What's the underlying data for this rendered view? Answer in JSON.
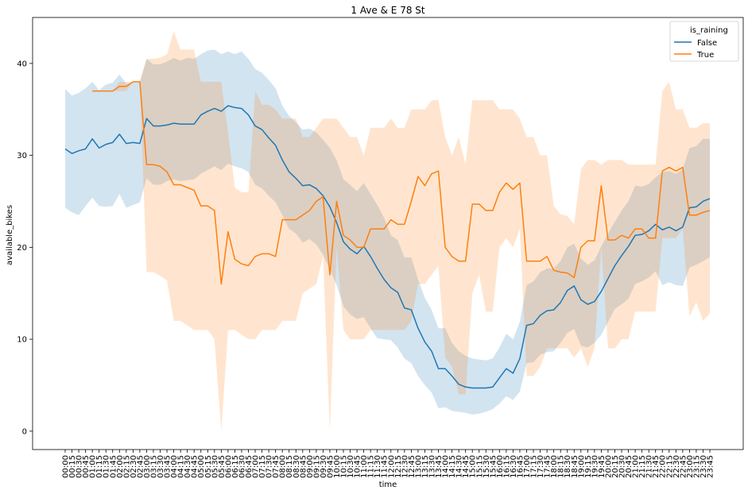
{
  "chart_data": {
    "type": "line",
    "title": "1 Ave & E 78 St",
    "xlabel": "time",
    "ylabel": "available_bikes",
    "ylim": [
      -2,
      45
    ],
    "yticks": [
      0,
      10,
      20,
      30,
      40
    ],
    "grid": false,
    "legend": {
      "title": "is_raining",
      "placement": "top-right",
      "entries": [
        "False",
        "True"
      ]
    },
    "x": [
      "00:00",
      "00:15",
      "00:30",
      "00:45",
      "01:00",
      "01:15",
      "01:30",
      "01:45",
      "02:00",
      "02:15",
      "02:30",
      "02:45",
      "03:00",
      "03:15",
      "03:30",
      "03:45",
      "04:00",
      "04:15",
      "04:30",
      "04:45",
      "05:00",
      "05:15",
      "05:30",
      "05:45",
      "06:00",
      "06:15",
      "06:30",
      "06:45",
      "07:00",
      "07:15",
      "07:30",
      "07:45",
      "08:00",
      "08:15",
      "08:30",
      "08:45",
      "09:00",
      "09:15",
      "09:30",
      "09:45",
      "10:00",
      "10:15",
      "10:30",
      "10:45",
      "11:00",
      "11:15",
      "11:30",
      "11:45",
      "12:00",
      "12:15",
      "12:30",
      "12:45",
      "13:00",
      "13:15",
      "13:30",
      "13:45",
      "14:00",
      "14:15",
      "14:30",
      "14:45",
      "15:00",
      "15:15",
      "15:30",
      "15:45",
      "16:00",
      "16:15",
      "16:30",
      "16:45",
      "17:00",
      "17:15",
      "17:30",
      "17:45",
      "18:00",
      "18:15",
      "18:30",
      "18:45",
      "19:00",
      "19:15",
      "19:30",
      "19:45",
      "20:00",
      "20:15",
      "20:30",
      "20:45",
      "21:00",
      "21:15",
      "21:30",
      "21:45",
      "22:00",
      "22:15",
      "22:30",
      "22:45",
      "23:00",
      "23:15",
      "23:30",
      "23:45"
    ],
    "series": [
      {
        "name": "False",
        "color": "#1f77b4",
        "values": [
          30.7,
          30.2,
          30.5,
          30.7,
          31.8,
          30.8,
          31.2,
          31.4,
          32.3,
          31.3,
          31.4,
          31.3,
          34.0,
          33.2,
          33.2,
          33.3,
          33.5,
          33.4,
          33.4,
          33.4,
          34.4,
          34.8,
          35.1,
          34.8,
          35.4,
          35.2,
          35.1,
          34.4,
          33.2,
          32.8,
          31.9,
          31.1,
          29.5,
          28.2,
          27.5,
          26.7,
          26.8,
          26.4,
          25.6,
          24.4,
          22.7,
          20.6,
          19.8,
          19.3,
          20.1,
          19.0,
          17.7,
          16.5,
          15.6,
          15.1,
          13.4,
          13.2,
          11.2,
          9.7,
          8.7,
          6.8,
          6.8,
          6.0,
          5.1,
          4.8,
          4.7,
          4.7,
          4.7,
          4.8,
          5.8,
          6.8,
          6.3,
          7.9,
          11.5,
          11.7,
          12.6,
          13.1,
          13.2,
          14.0,
          15.3,
          15.8,
          14.3,
          13.8,
          14.1,
          15.2,
          16.6,
          18.0,
          19.1,
          20.1,
          21.3,
          21.4,
          21.8,
          22.5,
          21.9,
          22.2,
          21.8,
          22.2,
          24.3,
          24.4,
          25.0,
          25.3
        ],
        "ci_low": [
          24.3,
          23.8,
          23.5,
          24.5,
          25.4,
          24.5,
          24.4,
          24.5,
          25.8,
          24.3,
          24.6,
          24.9,
          27.5,
          26.8,
          26.8,
          27.2,
          27.4,
          27.2,
          27.3,
          27.4,
          28.0,
          28.4,
          28.8,
          28.4,
          29.1,
          28.8,
          28.6,
          28.2,
          26.8,
          26.4,
          25.6,
          24.9,
          23.5,
          22.0,
          21.5,
          20.5,
          20.9,
          20.3,
          19.2,
          17.6,
          15.9,
          13.6,
          12.7,
          12.2,
          12.4,
          11.2,
          10.1,
          10.0,
          9.9,
          9.1,
          7.9,
          7.4,
          6.0,
          5.0,
          4.2,
          2.5,
          2.6,
          2.2,
          2.1,
          2.0,
          1.8,
          1.9,
          2.1,
          2.4,
          3.0,
          3.8,
          3.4,
          4.3,
          7.4,
          7.5,
          8.3,
          8.6,
          8.7,
          9.6,
          10.7,
          11.1,
          9.3,
          9.1,
          9.6,
          10.5,
          11.9,
          13.3,
          13.8,
          14.4,
          16.0,
          16.3,
          16.7,
          17.4,
          15.9,
          16.2,
          15.9,
          15.8,
          17.8,
          18.1,
          18.5,
          18.9
        ],
        "ci_high": [
          37.2,
          36.5,
          36.8,
          37.3,
          38.0,
          37.1,
          37.7,
          37.9,
          38.8,
          37.8,
          37.9,
          38.0,
          40.5,
          39.9,
          39.9,
          40.2,
          40.6,
          40.3,
          40.6,
          40.5,
          41.0,
          41.4,
          41.5,
          41.0,
          41.3,
          41.0,
          41.3,
          40.5,
          39.4,
          39.0,
          38.2,
          37.3,
          35.4,
          34.3,
          33.6,
          32.8,
          32.9,
          32.5,
          31.7,
          30.8,
          29.5,
          27.4,
          26.8,
          26.1,
          27.0,
          25.8,
          24.6,
          23.2,
          21.3,
          20.8,
          18.9,
          18.9,
          16.5,
          14.5,
          13.2,
          11.2,
          11.2,
          9.6,
          8.7,
          8.2,
          7.9,
          7.8,
          7.7,
          7.9,
          9.1,
          10.6,
          10.0,
          11.9,
          15.9,
          16.3,
          17.3,
          17.7,
          17.7,
          18.5,
          20.0,
          20.4,
          18.8,
          18.1,
          18.6,
          20.1,
          21.5,
          22.8,
          24.0,
          25.0,
          26.7,
          26.6,
          26.9,
          27.6,
          28.2,
          28.3,
          28.0,
          28.5,
          30.8,
          31.0,
          31.8,
          31.8
        ]
      },
      {
        "name": "True",
        "color": "#ff7f0e",
        "values": [
          null,
          null,
          null,
          null,
          37.0,
          37.0,
          37.0,
          37.0,
          37.5,
          37.5,
          38.0,
          38.0,
          29.0,
          29.0,
          28.8,
          28.2,
          26.8,
          26.8,
          26.5,
          26.2,
          24.5,
          24.5,
          24.0,
          16.0,
          21.7,
          18.7,
          18.2,
          18.0,
          19.0,
          19.3,
          19.3,
          19.0,
          23.0,
          23.0,
          23.0,
          23.5,
          24.0,
          25.0,
          25.5,
          17.0,
          25.0,
          21.3,
          20.8,
          20.0,
          20.0,
          22.0,
          22.0,
          22.0,
          23.0,
          22.5,
          22.5,
          25.0,
          27.7,
          26.7,
          28.0,
          28.3,
          20.0,
          19.0,
          18.5,
          18.5,
          24.7,
          24.7,
          24.0,
          24.0,
          26.0,
          27.0,
          26.3,
          27.0,
          18.5,
          18.5,
          18.5,
          19.0,
          17.5,
          17.3,
          17.2,
          16.7,
          20.0,
          20.7,
          20.7,
          26.7,
          20.8,
          20.8,
          21.3,
          21.0,
          22.0,
          22.0,
          21.0,
          21.0,
          28.3,
          28.7,
          28.3,
          28.7,
          23.5,
          23.5,
          23.8,
          24.0
        ],
        "ci_low": [
          null,
          null,
          null,
          null,
          37.0,
          37.0,
          37.0,
          37.0,
          37.0,
          37.0,
          38.0,
          38.0,
          17.3,
          17.3,
          16.9,
          16.4,
          12.0,
          12.0,
          11.5,
          11.0,
          11.0,
          11.0,
          10.0,
          0.0,
          11.0,
          11.0,
          10.5,
          10.0,
          10.0,
          11.0,
          11.0,
          11.0,
          12.0,
          12.0,
          12.0,
          15.0,
          15.5,
          16.0,
          19.0,
          0.0,
          20.0,
          11.0,
          10.0,
          10.0,
          10.0,
          11.0,
          11.0,
          11.0,
          11.0,
          11.0,
          11.0,
          12.0,
          16.0,
          16.0,
          17.0,
          18.0,
          8.0,
          7.0,
          4.0,
          4.0,
          15.0,
          17.0,
          13.0,
          13.0,
          20.0,
          21.0,
          20.0,
          22.0,
          6.0,
          6.0,
          7.0,
          9.0,
          9.0,
          9.0,
          9.0,
          8.0,
          9.0,
          7.0,
          9.0,
          20.0,
          9.0,
          9.0,
          10.0,
          10.0,
          13.0,
          13.0,
          13.0,
          13.0,
          21.0,
          21.0,
          21.0,
          22.0,
          12.5,
          14.0,
          12.0,
          12.8
        ],
        "ci_high": [
          null,
          null,
          null,
          null,
          37.0,
          37.0,
          37.0,
          37.0,
          38.0,
          38.0,
          38.0,
          38.0,
          40.5,
          40.5,
          40.6,
          41.0,
          43.5,
          41.5,
          41.5,
          41.5,
          38.0,
          38.0,
          38.0,
          38.0,
          32.5,
          26.5,
          26.0,
          26.0,
          37.0,
          35.5,
          35.5,
          35.0,
          34.0,
          34.0,
          34.0,
          32.0,
          32.0,
          33.0,
          34.0,
          34.0,
          34.0,
          33.0,
          32.0,
          32.0,
          30.0,
          33.0,
          33.0,
          33.0,
          34.0,
          33.0,
          33.0,
          35.0,
          35.0,
          35.0,
          36.0,
          36.0,
          32.0,
          30.0,
          32.0,
          29.0,
          36.0,
          36.0,
          36.0,
          36.0,
          35.0,
          35.0,
          35.0,
          34.0,
          32.0,
          32.0,
          30.0,
          30.0,
          24.5,
          23.6,
          23.4,
          22.5,
          28.5,
          29.5,
          29.5,
          29.0,
          29.5,
          29.5,
          29.5,
          29.0,
          29.0,
          29.0,
          29.0,
          29.0,
          37.0,
          38.0,
          35.0,
          35.0,
          33.0,
          33.0,
          33.5,
          33.5
        ]
      }
    ]
  }
}
